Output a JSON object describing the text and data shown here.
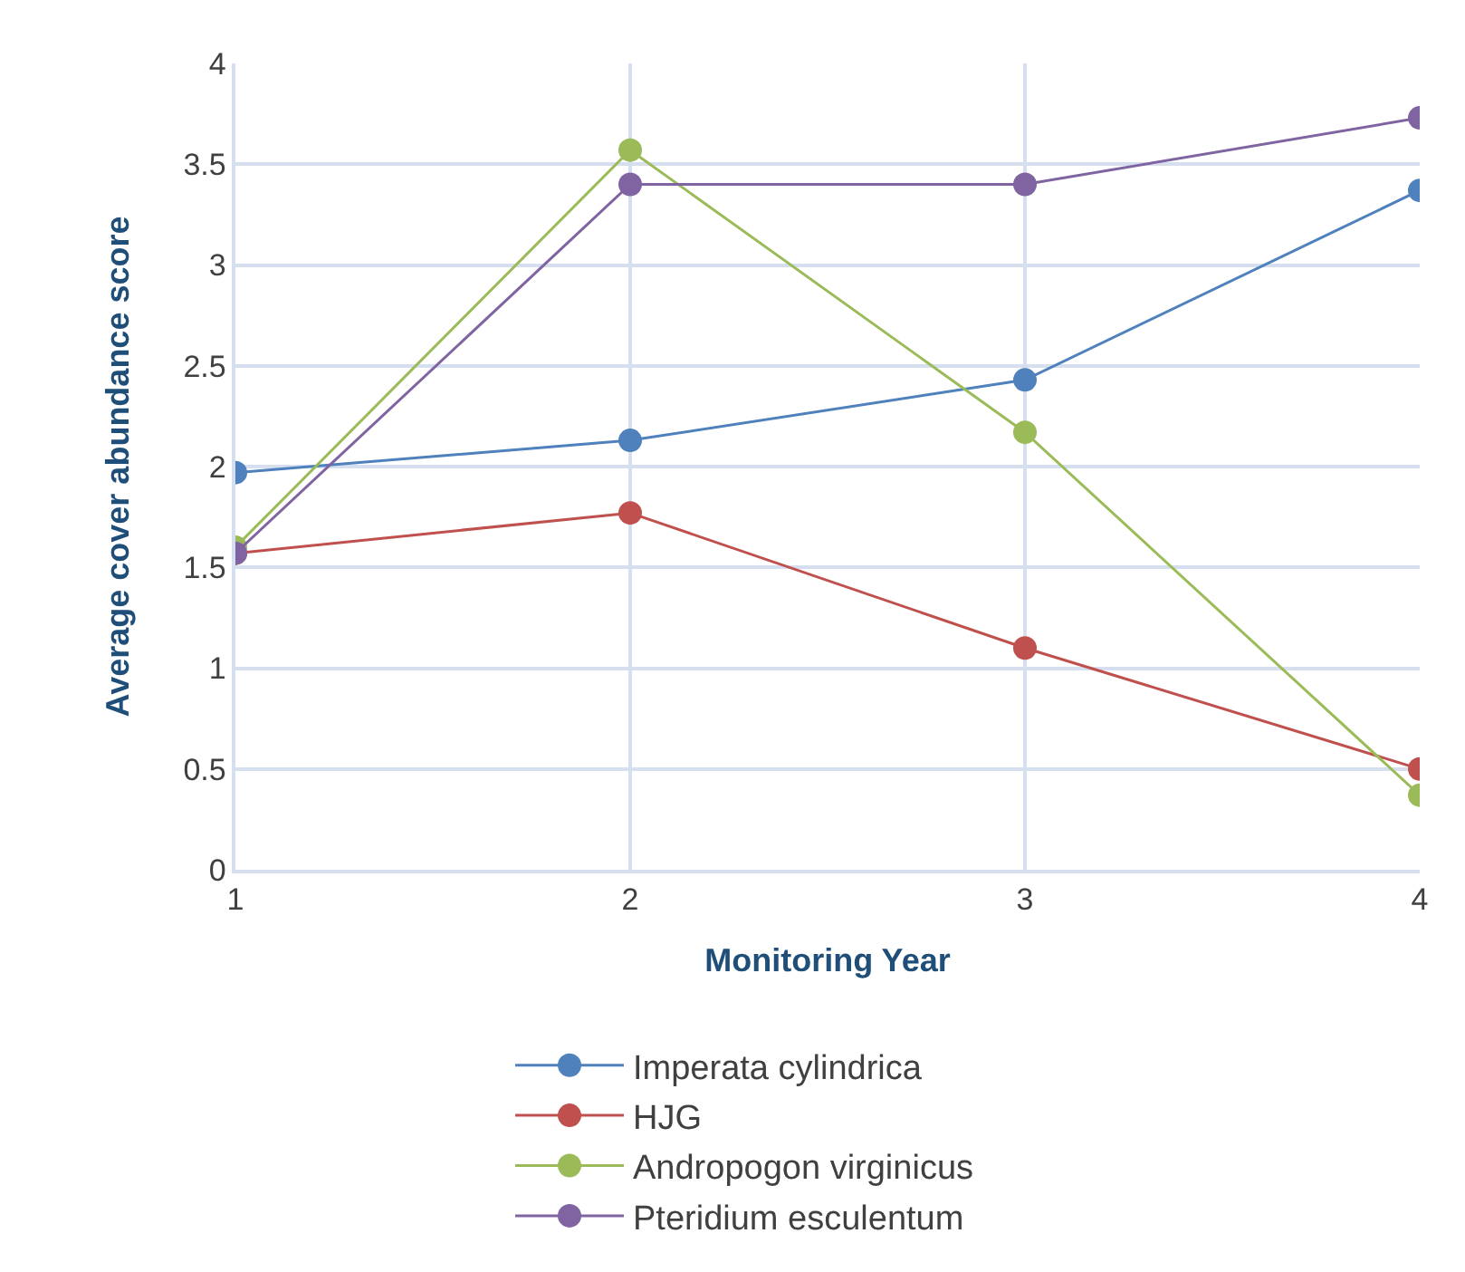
{
  "chart_data": {
    "type": "line",
    "xlabel": "Monitoring Year",
    "ylabel": "Average cover abundance score",
    "x": [
      1,
      2,
      3,
      4
    ],
    "series": [
      {
        "name": "Imperata cylindrica",
        "color": "#4f81bd",
        "values": [
          1.97,
          2.13,
          2.43,
          3.37
        ]
      },
      {
        "name": "HJG",
        "color": "#c0504d",
        "values": [
          1.57,
          1.77,
          1.1,
          0.5
        ]
      },
      {
        "name": "Andropogon virginicus",
        "color": "#9bbb59",
        "values": [
          1.6,
          3.57,
          2.17,
          0.37
        ]
      },
      {
        "name": "Pteridium esculentum",
        "color": "#8064a2",
        "values": [
          1.57,
          3.4,
          3.4,
          3.73
        ]
      }
    ],
    "xlim": [
      1,
      4
    ],
    "xticks": [
      1,
      2,
      3,
      4
    ],
    "ylim": [
      0,
      4
    ],
    "yticks": [
      0,
      0.5,
      1,
      1.5,
      2,
      2.5,
      3,
      3.5,
      4
    ],
    "grid": true,
    "legend": "bottom",
    "marker": "circle",
    "line_style": "solid"
  }
}
